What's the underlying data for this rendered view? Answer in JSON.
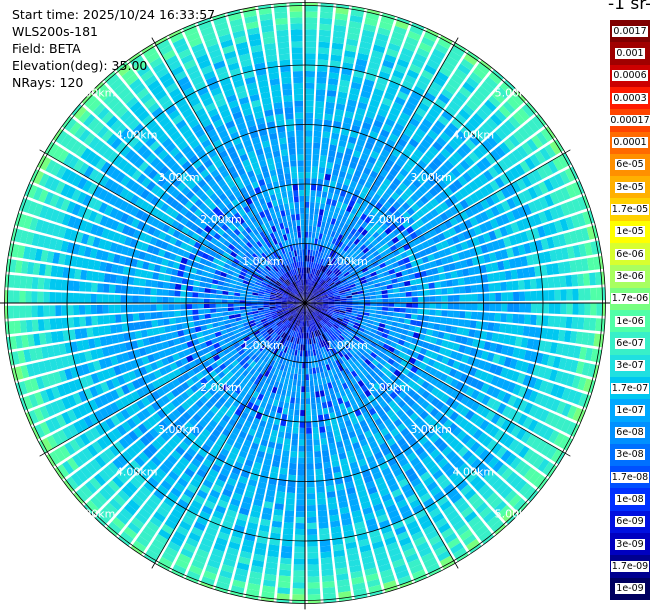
{
  "header": {
    "start_time": "Start time: 2025/10/24 16:33:57",
    "instrument": "WLS200s-181",
    "field": "Field: BETA",
    "elevation": "Elevation(deg): 35.00",
    "nrays": "NRays: 120"
  },
  "colorbar": {
    "units_label": "-1 sr-",
    "ticks": [
      "0.0017",
      "0.001",
      "0.0006",
      "0.0003",
      "0.00017",
      "0.0001",
      "6e-05",
      "3e-05",
      "1.7e-05",
      "1e-05",
      "6e-06",
      "3e-06",
      "1.7e-06",
      "1e-06",
      "6e-07",
      "3e-07",
      "1.7e-07",
      "1e-07",
      "6e-08",
      "3e-08",
      "1.7e-08",
      "1e-08",
      "6e-09",
      "3e-09",
      "1.7e-09",
      "1e-09"
    ],
    "colors": [
      "#800000",
      "#a00000",
      "#cc0000",
      "#ff1a00",
      "#ff4400",
      "#ff6a00",
      "#ff9000",
      "#ffb000",
      "#ffd000",
      "#ffff00",
      "#d8ff30",
      "#a8ff60",
      "#78ff80",
      "#50ffa8",
      "#38f0c8",
      "#20e0e0",
      "#00c8f0",
      "#00a8ff",
      "#0090ff",
      "#0070ff",
      "#0050ff",
      "#0030ff",
      "#0010e0",
      "#0000c0",
      "#000090",
      "#000060"
    ]
  },
  "chart_data": {
    "type": "heatmap",
    "projection": "polar (PPI)",
    "field": "BETA",
    "elevation_deg": 35.0,
    "nrays": 120,
    "range_rings_km": [
      1,
      2,
      3,
      4,
      5
    ],
    "ring_labels": [
      "1.00km",
      "2.00km",
      "3.00km",
      "4.00km",
      "5.00km"
    ],
    "max_range_km": 5.05,
    "radial_profile": [
      {
        "range_km": 0.0,
        "value": "1e-09"
      },
      {
        "range_km": 1.0,
        "value": "6e-08"
      },
      {
        "range_km": 2.0,
        "value": "1e-07"
      },
      {
        "range_km": 3.0,
        "value": "1e-07"
      },
      {
        "range_km": 4.0,
        "value": "1.7e-07"
      },
      {
        "range_km": 4.5,
        "value": "3e-07"
      },
      {
        "range_km": 5.0,
        "value": "1e-06"
      }
    ],
    "spoke_angles_deg": [
      0,
      30,
      60,
      90,
      120,
      150,
      180,
      210,
      240,
      270,
      300,
      330
    ]
  }
}
